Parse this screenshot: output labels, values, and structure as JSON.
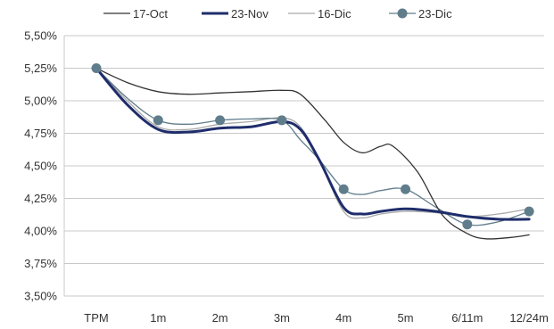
{
  "chart_data": {
    "type": "line",
    "categories": [
      "TPM",
      "1m",
      "2m",
      "3m",
      "4m",
      "5m",
      "6/11m",
      "12/24m"
    ],
    "ylim": [
      3.5,
      5.5
    ],
    "y_ticks": [
      "3,50%",
      "3,75%",
      "4,00%",
      "4,25%",
      "4,50%",
      "4,75%",
      "5,00%",
      "5,25%",
      "5,50%"
    ],
    "y_tick_values": [
      3.5,
      3.75,
      4.0,
      4.25,
      4.5,
      4.75,
      5.0,
      5.25,
      5.5
    ],
    "grid": "horizontal",
    "legend_position": "top",
    "series": [
      {
        "name": "17-Oct",
        "color": "#333333",
        "style": "thin",
        "marker": false,
        "x": [
          0,
          0.5,
          1,
          1.5,
          2,
          2.5,
          3,
          3.3,
          3.7,
          4,
          4.3,
          4.6,
          4.8,
          5.2,
          5.6,
          6,
          6.3,
          6.7,
          7
        ],
        "values": [
          5.25,
          5.14,
          5.07,
          5.05,
          5.06,
          5.07,
          5.08,
          5.05,
          4.85,
          4.68,
          4.6,
          4.65,
          4.65,
          4.45,
          4.12,
          3.98,
          3.94,
          3.95,
          3.97
        ]
      },
      {
        "name": "23-Nov",
        "color": "#1f2d6b",
        "style": "thick",
        "marker": false,
        "x": [
          0,
          0.5,
          1,
          1.5,
          2,
          2.5,
          3,
          3.3,
          3.6,
          4,
          4.3,
          4.6,
          5,
          5.5,
          6,
          6.5,
          7
        ],
        "values": [
          5.25,
          4.97,
          4.78,
          4.76,
          4.79,
          4.8,
          4.84,
          4.78,
          4.55,
          4.18,
          4.13,
          4.15,
          4.17,
          4.15,
          4.11,
          4.09,
          4.09
        ]
      },
      {
        "name": "16-Dic",
        "color": "#a9a9a9",
        "style": "thin",
        "marker": false,
        "x": [
          0,
          0.5,
          1,
          1.5,
          2,
          2.5,
          3,
          3.3,
          3.6,
          4,
          4.3,
          4.6,
          5,
          5.5,
          6,
          6.5,
          7
        ],
        "values": [
          5.25,
          5.0,
          4.8,
          4.78,
          4.82,
          4.84,
          4.87,
          4.8,
          4.55,
          4.15,
          4.1,
          4.13,
          4.15,
          4.14,
          4.11,
          4.13,
          4.17
        ]
      },
      {
        "name": "23-Dic",
        "color": "#607d8b",
        "style": "thin",
        "marker": true,
        "x": [
          0,
          0.5,
          1,
          1.5,
          2,
          2.5,
          3,
          3.3,
          3.6,
          4,
          4.3,
          4.6,
          5,
          5.5,
          6,
          6.5,
          7
        ],
        "values": [
          5.25,
          5.02,
          4.85,
          4.82,
          4.85,
          4.86,
          4.85,
          4.7,
          4.55,
          4.32,
          4.28,
          4.31,
          4.32,
          4.18,
          4.05,
          4.07,
          4.15
        ],
        "marker_x": [
          0,
          1,
          2,
          3,
          4,
          5,
          6,
          7
        ],
        "marker_values": [
          5.25,
          4.85,
          4.85,
          4.85,
          4.32,
          4.32,
          4.05,
          4.15
        ]
      }
    ]
  }
}
